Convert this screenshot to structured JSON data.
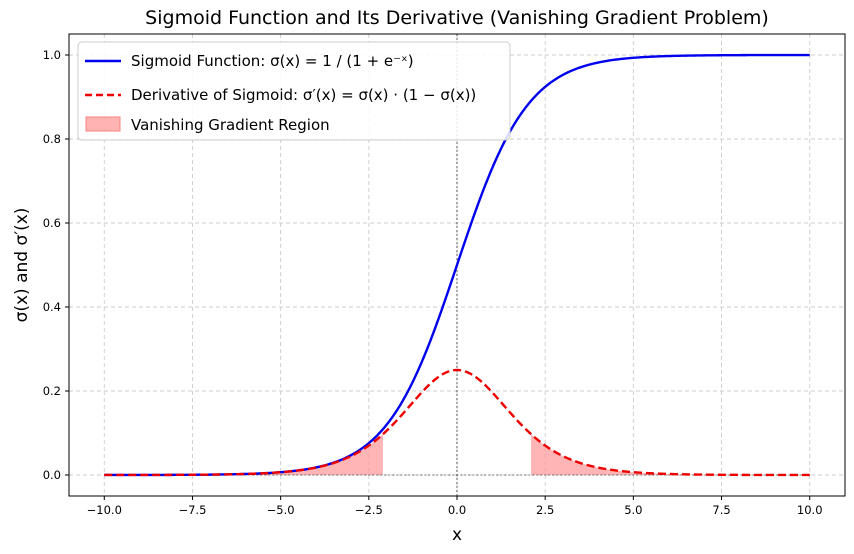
{
  "chart_data": {
    "type": "line",
    "title": "Sigmoid Function and Its Derivative (Vanishing Gradient Problem)",
    "xlabel": "x",
    "ylabel": "σ(x) and σ′(x)",
    "xlim": [
      -11,
      11
    ],
    "ylim": [
      -0.05,
      1.05
    ],
    "xticks": [
      -10.0,
      -7.5,
      -5.0,
      -2.5,
      0.0,
      2.5,
      5.0,
      7.5,
      10.0
    ],
    "xtick_labels": [
      "−10.0",
      "−7.5",
      "−5.0",
      "−2.5",
      "0.0",
      "2.5",
      "5.0",
      "7.5",
      "10.0"
    ],
    "yticks": [
      0.0,
      0.2,
      0.4,
      0.6,
      0.8,
      1.0
    ],
    "ytick_labels": [
      "0.0",
      "0.2",
      "0.4",
      "0.6",
      "0.8",
      "1.0"
    ],
    "grid": true,
    "legend_placement": "top-left",
    "x": [
      -10,
      -9,
      -8,
      -7,
      -6,
      -5,
      -4,
      -3,
      -2.5,
      -2,
      -1.5,
      -1,
      -0.5,
      0,
      0.5,
      1,
      1.5,
      2,
      2.5,
      3,
      4,
      5,
      6,
      7,
      8,
      9,
      10
    ],
    "series": [
      {
        "name": "Sigmoid Function: σ(x) = 1 / (1 + e⁻ˣ)",
        "color": "#0000ee",
        "style": "solid",
        "values": [
          0.0,
          0.0001,
          0.0003,
          0.0009,
          0.0025,
          0.0067,
          0.018,
          0.0474,
          0.0759,
          0.1192,
          0.1824,
          0.2689,
          0.3775,
          0.5,
          0.6225,
          0.7311,
          0.8176,
          0.8808,
          0.9241,
          0.9526,
          0.982,
          0.9933,
          0.9975,
          0.9991,
          0.9997,
          0.9999,
          1.0
        ]
      },
      {
        "name": "Derivative of Sigmoid: σ′(x) = σ(x) · (1 − σ(x))",
        "color": "#ee0000",
        "style": "dashed",
        "values": [
          0.0,
          0.0001,
          0.0003,
          0.0009,
          0.0025,
          0.0066,
          0.0177,
          0.0452,
          0.0701,
          0.105,
          0.1491,
          0.1966,
          0.235,
          0.25,
          0.235,
          0.1966,
          0.1491,
          0.105,
          0.0701,
          0.0452,
          0.0177,
          0.0066,
          0.0025,
          0.0009,
          0.0003,
          0.0001,
          0.0
        ]
      }
    ],
    "shaded_regions": {
      "name": "Vanishing Gradient Region",
      "color": "#ff9999",
      "ranges": [
        [
          -10,
          -2.1
        ],
        [
          2.1,
          10
        ]
      ]
    },
    "reference_lines": {
      "x": 0,
      "y": 0,
      "color": "#000000"
    }
  }
}
